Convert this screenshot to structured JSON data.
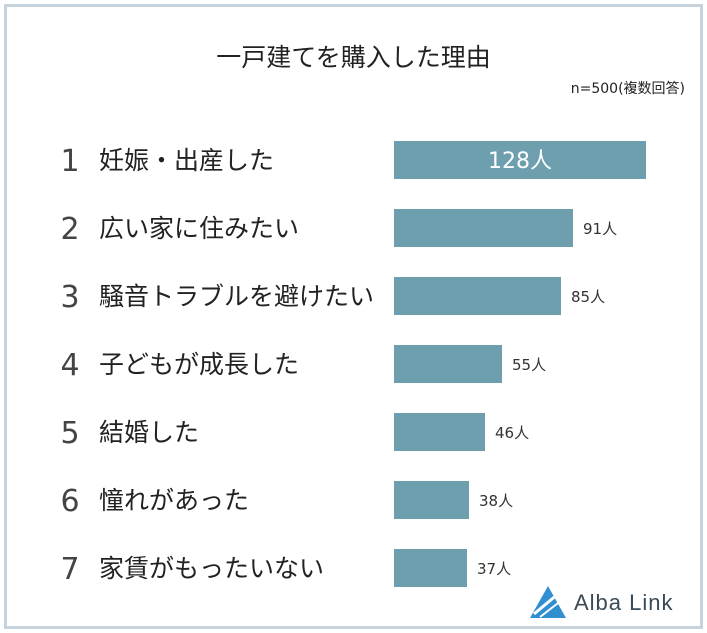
{
  "title": "一戸建てを購入した理由",
  "note": "n=500(複数回答)",
  "brand": {
    "name": "Alba Link",
    "color": "#2f8fd0"
  },
  "chart_data": {
    "type": "bar",
    "orientation": "horizontal",
    "categories": [
      "妊娠・出産した",
      "広い家に住みたい",
      "騒音トラブルを避けたい",
      "子どもが成長した",
      "結婚した",
      "憧れがあった",
      "家賃がもったいない"
    ],
    "ranks": [
      "1",
      "2",
      "3",
      "4",
      "5",
      "6",
      "7"
    ],
    "values": [
      128,
      91,
      85,
      55,
      46,
      38,
      37
    ],
    "value_labels": [
      "128人",
      "91人",
      "85人",
      "55人",
      "46人",
      "38人",
      "37人"
    ],
    "bar_color": "#6e9fae",
    "xlim": [
      0,
      128
    ],
    "grid": false,
    "legend": "none"
  }
}
